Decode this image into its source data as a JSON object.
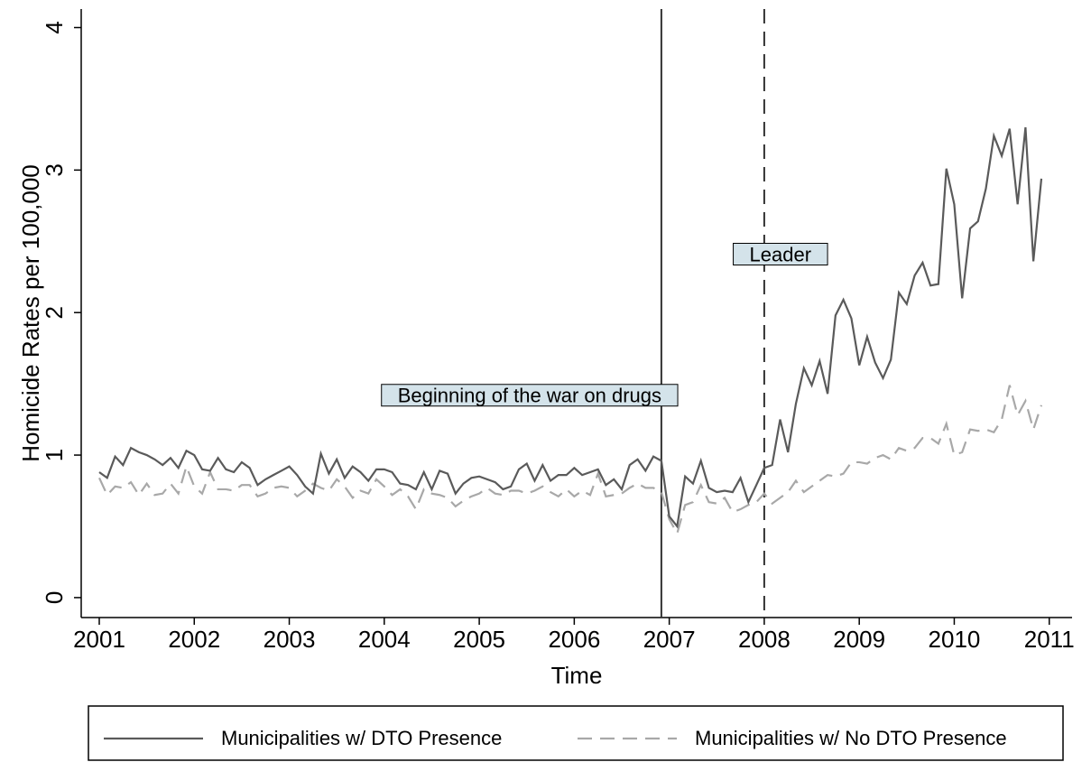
{
  "chart_data": {
    "type": "line",
    "xlabel": "Time",
    "ylabel": "Homicide Rates per 100,000",
    "xlim": [
      2000.81,
      2011.24
    ],
    "xticks": [
      2001,
      2002,
      2003,
      2004,
      2005,
      2006,
      2007,
      2008,
      2009,
      2010,
      2011
    ],
    "ylim": [
      -0.14,
      4.13
    ],
    "yticks": [
      0,
      1,
      2,
      3,
      4
    ],
    "grid": false,
    "legend": "bottom",
    "x": [
      2001.0,
      2001.083,
      2001.167,
      2001.25,
      2001.333,
      2001.417,
      2001.5,
      2001.583,
      2001.667,
      2001.75,
      2001.833,
      2001.917,
      2002.0,
      2002.083,
      2002.167,
      2002.25,
      2002.333,
      2002.417,
      2002.5,
      2002.583,
      2002.667,
      2002.75,
      2002.833,
      2002.917,
      2003.0,
      2003.083,
      2003.167,
      2003.25,
      2003.333,
      2003.417,
      2003.5,
      2003.583,
      2003.667,
      2003.75,
      2003.833,
      2003.917,
      2004.0,
      2004.083,
      2004.167,
      2004.25,
      2004.333,
      2004.417,
      2004.5,
      2004.583,
      2004.667,
      2004.75,
      2004.833,
      2004.917,
      2005.0,
      2005.083,
      2005.167,
      2005.25,
      2005.333,
      2005.417,
      2005.5,
      2005.583,
      2005.667,
      2005.75,
      2005.833,
      2005.917,
      2006.0,
      2006.083,
      2006.167,
      2006.25,
      2006.333,
      2006.417,
      2006.5,
      2006.583,
      2006.667,
      2006.75,
      2006.833,
      2006.917,
      2007.0,
      2007.083,
      2007.167,
      2007.25,
      2007.333,
      2007.417,
      2007.5,
      2007.583,
      2007.667,
      2007.75,
      2007.833,
      2007.917,
      2008.0,
      2008.083,
      2008.167,
      2008.25,
      2008.333,
      2008.417,
      2008.5,
      2008.583,
      2008.667,
      2008.75,
      2008.833,
      2008.917,
      2009.0,
      2009.083,
      2009.167,
      2009.25,
      2009.333,
      2009.417,
      2009.5,
      2009.583,
      2009.667,
      2009.75,
      2009.833,
      2009.917,
      2010.0,
      2010.083,
      2010.167,
      2010.25,
      2010.333,
      2010.417,
      2010.5,
      2010.583,
      2010.667,
      2010.75,
      2010.833,
      2010.917
    ],
    "series": [
      {
        "name": "Municipalities w/ DTO Presence",
        "color": "#5a5a5a",
        "line_style": "solid",
        "values": [
          0.88,
          0.84,
          0.99,
          0.93,
          1.05,
          1.02,
          1.0,
          0.97,
          0.93,
          0.98,
          0.91,
          1.03,
          1.0,
          0.9,
          0.89,
          0.98,
          0.9,
          0.88,
          0.95,
          0.91,
          0.79,
          0.83,
          0.86,
          0.89,
          0.92,
          0.86,
          0.78,
          0.73,
          1.01,
          0.87,
          0.97,
          0.84,
          0.92,
          0.88,
          0.82,
          0.9,
          0.9,
          0.88,
          0.8,
          0.79,
          0.76,
          0.88,
          0.76,
          0.89,
          0.87,
          0.73,
          0.8,
          0.84,
          0.85,
          0.83,
          0.81,
          0.76,
          0.78,
          0.9,
          0.94,
          0.82,
          0.93,
          0.82,
          0.86,
          0.86,
          0.91,
          0.86,
          0.88,
          0.9,
          0.79,
          0.83,
          0.76,
          0.93,
          0.97,
          0.89,
          0.99,
          0.96,
          0.57,
          0.5,
          0.85,
          0.8,
          0.96,
          0.77,
          0.74,
          0.75,
          0.74,
          0.84,
          0.67,
          0.79,
          0.91,
          0.93,
          1.25,
          1.02,
          1.36,
          1.61,
          1.49,
          1.66,
          1.43,
          1.98,
          2.09,
          1.96,
          1.63,
          1.83,
          1.65,
          1.54,
          1.67,
          2.14,
          2.06,
          2.26,
          2.35,
          2.19,
          2.2,
          3.01,
          2.76,
          2.1,
          2.59,
          2.64,
          2.87,
          3.24,
          3.1,
          3.29,
          2.76,
          3.3,
          2.36,
          2.94
        ]
      },
      {
        "name": "Municipalities w/ No DTO Presence",
        "color": "#a8a8a8",
        "line_style": "dashed",
        "values": [
          0.84,
          0.72,
          0.78,
          0.77,
          0.81,
          0.72,
          0.8,
          0.72,
          0.73,
          0.8,
          0.73,
          0.92,
          0.78,
          0.73,
          0.88,
          0.76,
          0.76,
          0.75,
          0.79,
          0.79,
          0.71,
          0.73,
          0.77,
          0.78,
          0.77,
          0.71,
          0.75,
          0.8,
          0.77,
          0.75,
          0.83,
          0.78,
          0.7,
          0.75,
          0.73,
          0.83,
          0.78,
          0.72,
          0.76,
          0.71,
          0.62,
          0.76,
          0.73,
          0.72,
          0.7,
          0.64,
          0.68,
          0.71,
          0.73,
          0.77,
          0.73,
          0.72,
          0.75,
          0.75,
          0.73,
          0.75,
          0.78,
          0.74,
          0.71,
          0.76,
          0.71,
          0.75,
          0.72,
          0.87,
          0.71,
          0.72,
          0.73,
          0.77,
          0.8,
          0.77,
          0.77,
          0.74,
          0.55,
          0.45,
          0.65,
          0.67,
          0.79,
          0.67,
          0.66,
          0.7,
          0.6,
          0.62,
          0.65,
          0.67,
          0.73,
          0.66,
          0.7,
          0.74,
          0.82,
          0.74,
          0.78,
          0.82,
          0.86,
          0.85,
          0.87,
          0.95,
          0.95,
          0.94,
          0.98,
          1.0,
          0.97,
          1.05,
          1.03,
          1.05,
          1.12,
          1.12,
          1.08,
          1.22,
          1.0,
          1.02,
          1.18,
          1.17,
          1.18,
          1.16,
          1.25,
          1.49,
          1.28,
          1.38,
          1.18,
          1.35
        ]
      }
    ],
    "vlines": [
      {
        "x": 2006.917,
        "line_style": "solid"
      },
      {
        "x": 2008.0,
        "line_style": "dashed"
      }
    ],
    "annotations": [
      {
        "text": "Beginning of the war on drugs",
        "x": 2005.53,
        "y": 1.42
      },
      {
        "text": "Leader",
        "x": 2008.17,
        "y": 2.41
      }
    ]
  }
}
